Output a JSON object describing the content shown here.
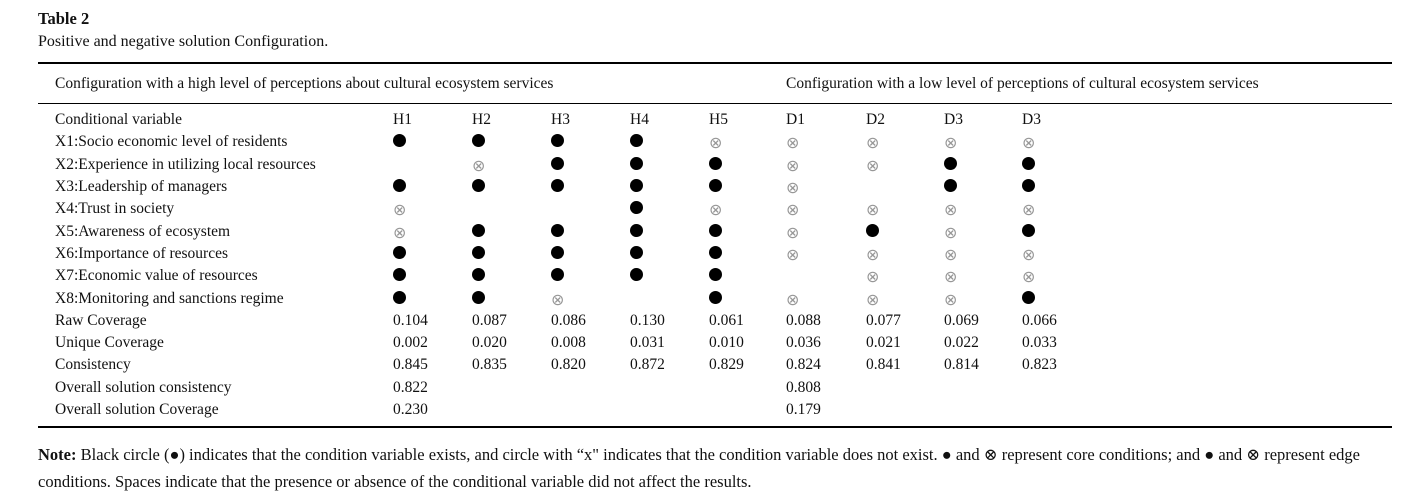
{
  "title": "Table 2",
  "subtitle": "Positive and negative solution Configuration.",
  "table": {
    "group_headers": {
      "high": "Configuration with a high level of perceptions about cultural ecosystem services",
      "low": "Configuration with a low level of perceptions of cultural ecosystem services"
    },
    "row_header_label": "Conditional variable",
    "columns": [
      "H1",
      "H2",
      "H3",
      "H4",
      "H5",
      "D1",
      "D2",
      "D3",
      "D3"
    ],
    "symbols": {
      "filled": "●",
      "crossed": "⊗"
    },
    "rows": [
      {
        "label": "X1:Socio economic level of residents",
        "cells": [
          "●",
          "●",
          "●",
          "●",
          "⊗",
          "⊗",
          "⊗",
          "⊗",
          "⊗"
        ]
      },
      {
        "label": "X2:Experience in utilizing local resources",
        "cells": [
          "",
          "⊗",
          "●",
          "●",
          "●",
          "⊗",
          "⊗",
          "●",
          "●"
        ]
      },
      {
        "label": "X3:Leadership of managers",
        "cells": [
          "●",
          "●",
          "●",
          "●",
          "●",
          "⊗",
          "",
          "●",
          "●"
        ]
      },
      {
        "label": "X4:Trust in society",
        "cells": [
          "⊗",
          "",
          "",
          "●",
          "⊗",
          "⊗",
          "⊗",
          "⊗",
          "⊗"
        ]
      },
      {
        "label": "X5:Awareness of ecosystem",
        "cells": [
          "⊗",
          "●",
          "●",
          "●",
          "●",
          "⊗",
          "●",
          "⊗",
          "●"
        ]
      },
      {
        "label": "X6:Importance of resources",
        "cells": [
          "●",
          "●",
          "●",
          "●",
          "●",
          "⊗",
          "⊗",
          "⊗",
          "⊗"
        ]
      },
      {
        "label": "X7:Economic value of resources",
        "cells": [
          "●",
          "●",
          "●",
          "●",
          "●",
          "",
          "⊗",
          "⊗",
          "⊗"
        ]
      },
      {
        "label": "X8:Monitoring and sanctions regime",
        "cells": [
          "●",
          "●",
          "⊗",
          "",
          "●",
          "⊗",
          "⊗",
          "⊗",
          "●"
        ]
      },
      {
        "label": "Raw Coverage",
        "cells": [
          "0.104",
          "0.087",
          "0.086",
          "0.130",
          "0.061",
          "0.088",
          "0.077",
          "0.069",
          "0.066"
        ]
      },
      {
        "label": "Unique Coverage",
        "cells": [
          "0.002",
          "0.020",
          "0.008",
          "0.031",
          "0.010",
          "0.036",
          "0.021",
          "0.022",
          "0.033"
        ]
      },
      {
        "label": "Consistency",
        "cells": [
          "0.845",
          "0.835",
          "0.820",
          "0.872",
          "0.829",
          "0.824",
          "0.841",
          "0.814",
          "0.823"
        ]
      },
      {
        "label": "Overall solution consistency",
        "cells": [
          "0.822",
          "",
          "",
          "",
          "",
          "0.808",
          "",
          "",
          ""
        ]
      },
      {
        "label": "Overall solution Coverage",
        "cells": [
          "0.230",
          "",
          "",
          "",
          "",
          "0.179",
          "",
          "",
          ""
        ]
      }
    ]
  },
  "note": {
    "label": "Note:",
    "text": " Black circle (●) indicates that the condition variable exists, and circle with “x\" indicates that the condition variable does not exist. ● and ⊗ represent core conditions; and ● and ⊗ represent edge conditions. Spaces indicate that the presence or absence of the conditional variable did not affect the results."
  },
  "colors": {
    "text": "#111111",
    "cross_symbol": "#979797",
    "rule": "#000000"
  }
}
